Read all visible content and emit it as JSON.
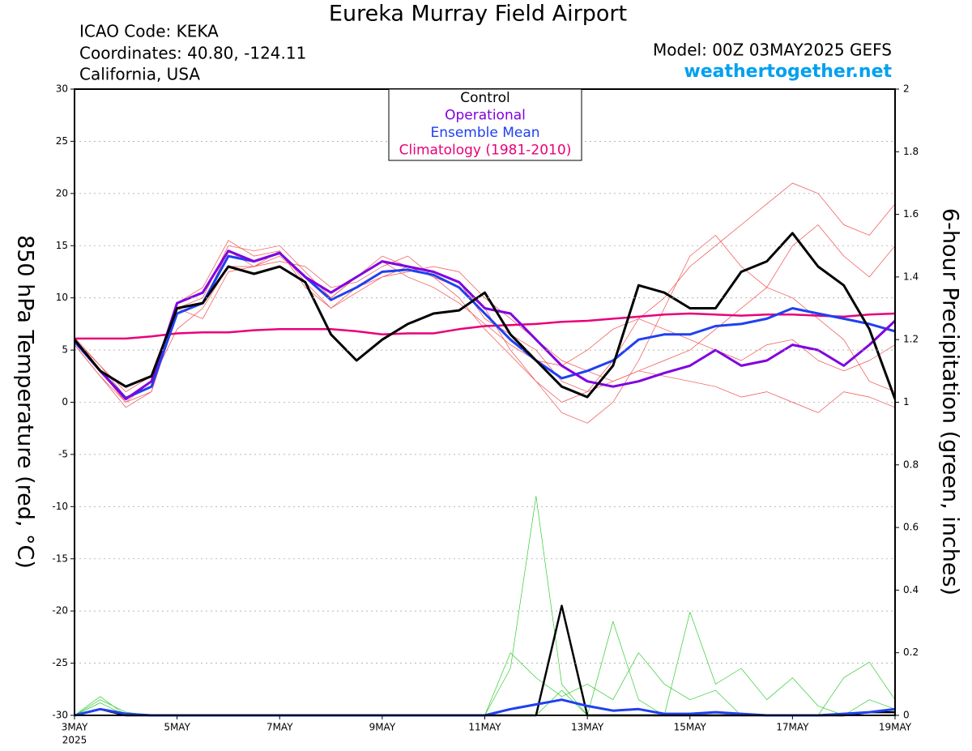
{
  "chart_data": {
    "type": "line",
    "title": "Eureka Murray Field Airport",
    "header_left": [
      "ICAO Code: KEKA",
      "Coordinates: 40.80, -124.11",
      "California, USA"
    ],
    "header_right": [
      "Model: 00Z 03MAY2025 GEFS",
      "weathertogether.net"
    ],
    "ylabel": "850 hPa Temperature (red, °C)",
    "y2label": "6-hour Precipitation (green, inches)",
    "year": "2025",
    "x": [
      0,
      0.5,
      1,
      1.5,
      2,
      2.5,
      3,
      3.5,
      4,
      4.5,
      5,
      5.5,
      6,
      6.5,
      7,
      7.5,
      8,
      8.5,
      9,
      9.5,
      10,
      10.5,
      11,
      11.5,
      12,
      12.5,
      13,
      13.5,
      14,
      14.5,
      15,
      15.5,
      16
    ],
    "xlim": [
      0,
      16
    ],
    "xticks": [
      {
        "value": 0,
        "label": "3MAY"
      },
      {
        "value": 2,
        "label": "5MAY"
      },
      {
        "value": 4,
        "label": "7MAY"
      },
      {
        "value": 6,
        "label": "9MAY"
      },
      {
        "value": 8,
        "label": "11MAY"
      },
      {
        "value": 10,
        "label": "13MAY"
      },
      {
        "value": 12,
        "label": "15MAY"
      },
      {
        "value": 14,
        "label": "17MAY"
      },
      {
        "value": 16,
        "label": "19MAY"
      }
    ],
    "ylim": [
      -30,
      30
    ],
    "yticks": [
      -30,
      -25,
      -20,
      -15,
      -10,
      -5,
      0,
      5,
      10,
      15,
      20,
      25,
      30
    ],
    "y2lim": [
      0,
      2
    ],
    "y2ticks": [
      0,
      0.2,
      0.4,
      0.6,
      0.8,
      1,
      1.2,
      1.4,
      1.6,
      1.8,
      2
    ],
    "grid": true,
    "legend": "top",
    "series": [
      {
        "name": "Control",
        "color": "#000000",
        "linewidth": 3,
        "values": [
          6,
          3,
          1.5,
          2.5,
          9,
          9.5,
          13,
          12.3,
          13,
          11.5,
          6.5,
          4,
          6,
          7.5,
          8.5,
          8.8,
          10.5,
          6.5,
          4,
          1.5,
          0.5,
          3.5,
          11.2,
          10.5,
          9,
          9,
          12.5,
          13.5,
          16.2,
          13,
          11.2,
          7,
          0.3
        ]
      },
      {
        "name": "Operational",
        "color": "#8000e0",
        "linewidth": 3,
        "values": [
          6,
          3,
          0.3,
          2,
          9.5,
          10.5,
          14.5,
          13.5,
          14.3,
          12,
          10.5,
          12,
          13.5,
          13,
          12.5,
          11.5,
          9,
          8.5,
          6,
          3.5,
          2,
          1.5,
          2,
          2.8,
          3.5,
          5,
          3.5,
          4,
          5.5,
          5,
          3.5,
          5.5,
          7.8
        ]
      },
      {
        "name": "Ensemble Mean",
        "color": "#2040f0",
        "linewidth": 3,
        "values": [
          5.8,
          3,
          0.4,
          1.5,
          8.5,
          9.5,
          14,
          13.5,
          14.3,
          12,
          9.8,
          11,
          12.5,
          12.7,
          12.2,
          11,
          8.5,
          6,
          4,
          2.3,
          3,
          4,
          6,
          6.5,
          6.5,
          7.3,
          7.5,
          8,
          9,
          8.5,
          8,
          7.5,
          6.8
        ]
      },
      {
        "name": "Climatology (1981-2010)",
        "color": "#e8007a",
        "linewidth": 2.5,
        "values": [
          6.1,
          6.1,
          6.1,
          6.3,
          6.6,
          6.7,
          6.7,
          6.9,
          7,
          7,
          7,
          6.8,
          6.5,
          6.6,
          6.6,
          7,
          7.3,
          7.4,
          7.5,
          7.7,
          7.8,
          8,
          8.2,
          8.4,
          8.5,
          8.4,
          8.3,
          8.4,
          8.4,
          8.3,
          8.2,
          8.4,
          8.5
        ]
      },
      {
        "color": "#f05050",
        "linewidth": 0.7,
        "values": [
          5.5,
          2.5,
          -0.5,
          1,
          9,
          10,
          15,
          14.5,
          15,
          12.5,
          10,
          12,
          14,
          13,
          12,
          10,
          7,
          4.5,
          2,
          0,
          1,
          4,
          8,
          10,
          13,
          15,
          17,
          19,
          21,
          20,
          17,
          16,
          19
        ]
      },
      {
        "color": "#f05050",
        "linewidth": 0.7,
        "values": [
          6,
          3.5,
          1,
          2.5,
          9.5,
          11,
          15.5,
          14,
          14.5,
          11,
          9,
          10.5,
          12,
          12.5,
          13,
          12.5,
          10,
          8,
          6,
          4,
          3,
          2,
          3,
          2.5,
          2,
          1.5,
          0.5,
          1,
          0,
          -1,
          1,
          0.5,
          -0.5
        ]
      },
      {
        "color": "#f05050",
        "linewidth": 0.7,
        "values": [
          5.8,
          3,
          0,
          2,
          7,
          9,
          13,
          13,
          13.5,
          13,
          11,
          11.5,
          13,
          14,
          12,
          11,
          9,
          5,
          2,
          -1,
          -2,
          0,
          4,
          9,
          14,
          16,
          13,
          11,
          15,
          17,
          14,
          12,
          15
        ]
      },
      {
        "color": "#f05050",
        "linewidth": 0.7,
        "values": [
          6.2,
          3.5,
          0.5,
          1.5,
          9,
          8,
          12.5,
          13,
          14,
          12,
          10,
          12,
          13.5,
          12,
          11,
          9.5,
          7.5,
          5.5,
          4,
          3.5,
          5,
          7,
          8,
          7,
          6,
          5,
          4,
          5.5,
          6,
          4,
          3,
          4,
          5.5
        ]
      },
      {
        "color": "#f05050",
        "linewidth": 0.7,
        "values": [
          5.5,
          2.5,
          0,
          1,
          8.5,
          9.5,
          14.5,
          13,
          14.5,
          11.5,
          9,
          11,
          12,
          13,
          12.5,
          11.5,
          8,
          6.5,
          5,
          2,
          1,
          2,
          3,
          4,
          5,
          7,
          9,
          11,
          10,
          8,
          6,
          2,
          1
        ]
      },
      {
        "color": "#33cc33",
        "linewidth": 0.7,
        "axis": "y2",
        "values": [
          0,
          0.06,
          0,
          0,
          0,
          0,
          0,
          0,
          0,
          0,
          0,
          0,
          0,
          0,
          0,
          0,
          0,
          0.15,
          0.7,
          0.1,
          0,
          0,
          0,
          0,
          0,
          0,
          0,
          0,
          0,
          0,
          0,
          0,
          0
        ]
      },
      {
        "color": "#33cc33",
        "linewidth": 0.7,
        "axis": "y2",
        "values": [
          0,
          0.04,
          0,
          0,
          0,
          0,
          0,
          0,
          0,
          0,
          0,
          0,
          0,
          0,
          0,
          0,
          0,
          0.2,
          0.12,
          0.06,
          0.1,
          0.05,
          0.2,
          0.1,
          0.05,
          0.08,
          0,
          0,
          0,
          0,
          0.12,
          0.17,
          0.05
        ]
      },
      {
        "color": "#33cc33",
        "linewidth": 0.7,
        "axis": "y2",
        "values": [
          0,
          0.05,
          0.01,
          0,
          0,
          0,
          0,
          0,
          0,
          0,
          0,
          0,
          0,
          0,
          0,
          0,
          0,
          0,
          0,
          0.08,
          0,
          0.3,
          0.05,
          0,
          0.33,
          0.1,
          0.15,
          0.05,
          0.12,
          0.03,
          0,
          0.05,
          0.02
        ]
      },
      {
        "color": "#000000",
        "linewidth": 2.5,
        "axis": "y2",
        "values": [
          0,
          0.02,
          0,
          0,
          0,
          0,
          0,
          0,
          0,
          0,
          0,
          0,
          0,
          0,
          0,
          0,
          0,
          0,
          0,
          0.35,
          0,
          0,
          0,
          0,
          0,
          0,
          0,
          0,
          0,
          0,
          0,
          0.01,
          0.01
        ]
      },
      {
        "color": "#2040f0",
        "linewidth": 3,
        "axis": "y2",
        "values": [
          0,
          0.02,
          0.005,
          0,
          0,
          0,
          0,
          0,
          0,
          0,
          0,
          0,
          0,
          0,
          0,
          0,
          0,
          0.02,
          0.035,
          0.05,
          0.03,
          0.015,
          0.02,
          0.005,
          0.005,
          0.01,
          0.005,
          0,
          0,
          0,
          0.005,
          0.01,
          0.02
        ]
      }
    ]
  }
}
